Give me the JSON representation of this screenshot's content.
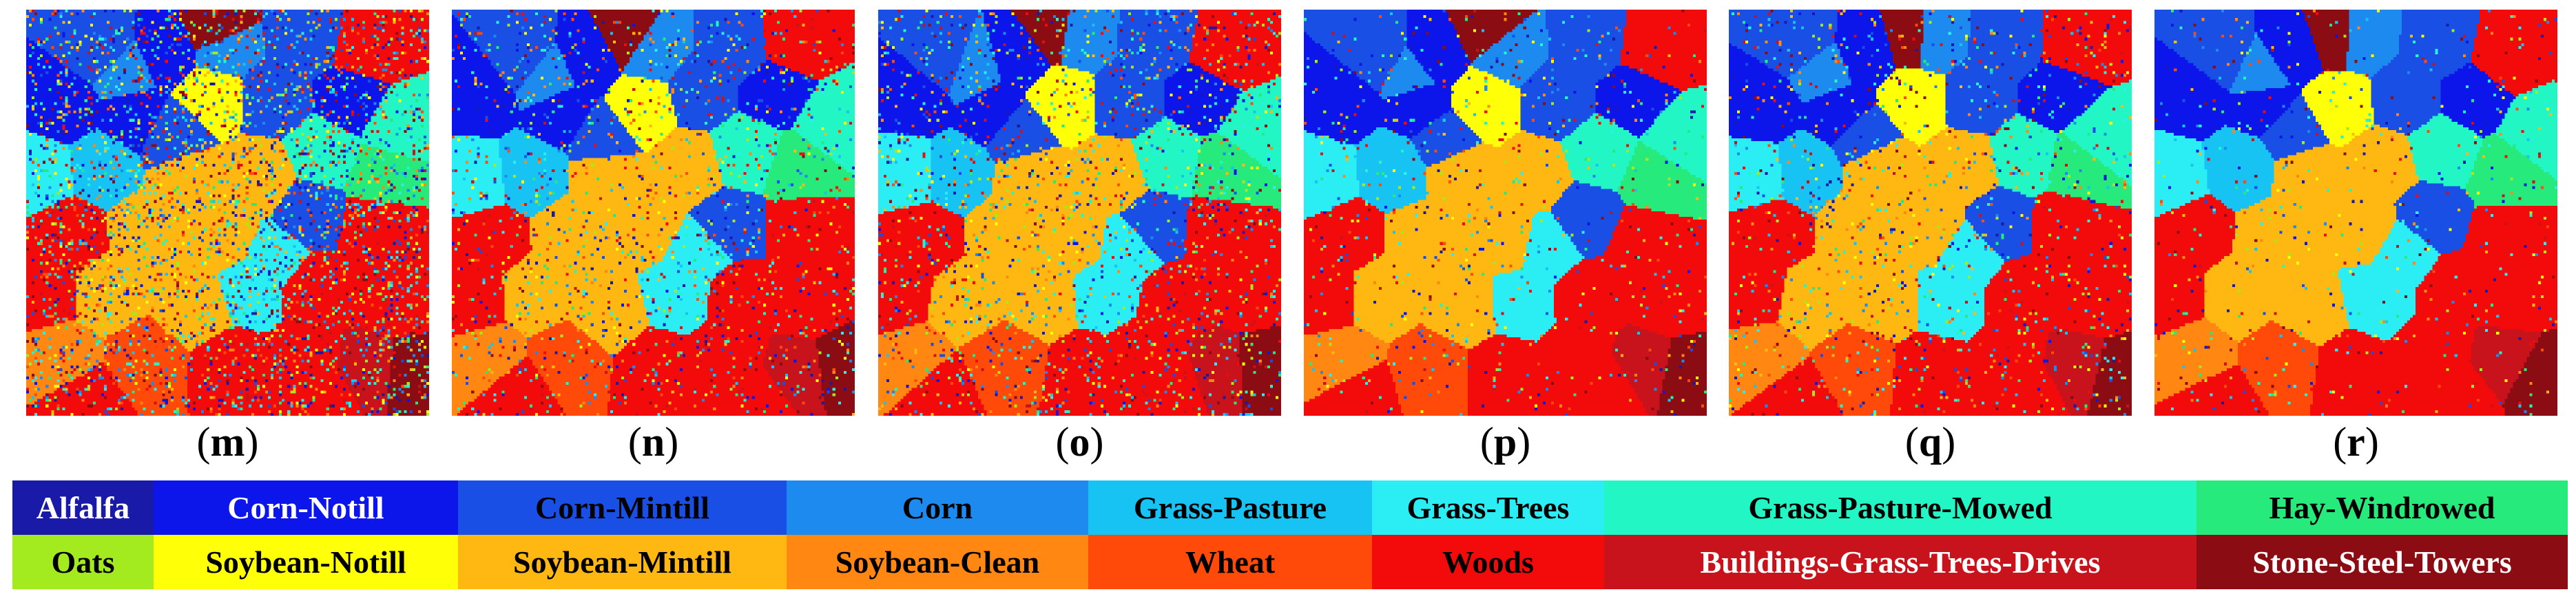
{
  "panels": [
    {
      "label": "m",
      "seed": 13,
      "noise": 0.36
    },
    {
      "label": "n",
      "seed": 29,
      "noise": 0.16
    },
    {
      "label": "o",
      "seed": 47,
      "noise": 0.2
    },
    {
      "label": "p",
      "seed": 61,
      "noise": 0.08
    },
    {
      "label": "q",
      "seed": 83,
      "noise": 0.13
    },
    {
      "label": "r",
      "seed": 97,
      "noise": 0.06
    }
  ],
  "label_format": {
    "open": "(",
    "close": ")"
  },
  "legend": {
    "rows": [
      [
        {
          "name": "Alfalfa",
          "color": "#1a1aa8",
          "text_color": "#ffffff"
        },
        {
          "name": "Corn-Notill",
          "color": "#0d16ea",
          "text_color": "#ffffff"
        },
        {
          "name": "Corn-Mintill",
          "color": "#1a4fe5",
          "text_color": "#000000"
        },
        {
          "name": "Corn",
          "color": "#1d8af0",
          "text_color": "#000000"
        },
        {
          "name": "Grass-Pasture",
          "color": "#16c3f2",
          "text_color": "#000000"
        },
        {
          "name": "Grass-Trees",
          "color": "#2beef4",
          "text_color": "#000000"
        },
        {
          "name": "Grass-Pasture-Mowed",
          "color": "#22f6c4",
          "text_color": "#000000"
        },
        {
          "name": "Hay-Windrowed",
          "color": "#26ea7c",
          "text_color": "#000000"
        }
      ],
      [
        {
          "name": "Oats",
          "color": "#a3ea1f",
          "text_color": "#000000"
        },
        {
          "name": "Soybean-Notill",
          "color": "#ffff08",
          "text_color": "#000000"
        },
        {
          "name": "Soybean-Mintill",
          "color": "#ffb812",
          "text_color": "#000000"
        },
        {
          "name": "Soybean-Clean",
          "color": "#ff8712",
          "text_color": "#000000"
        },
        {
          "name": "Wheat",
          "color": "#ff4a0a",
          "text_color": "#000000"
        },
        {
          "name": "Woods",
          "color": "#f30b0b",
          "text_color": "#000000"
        },
        {
          "name": "Buildings-Grass-Trees-Drives",
          "color": "#c8121c",
          "text_color": "#ffffff"
        },
        {
          "name": "Stone-Steel-Towers",
          "color": "#8b0c12",
          "text_color": "#ffffff"
        }
      ]
    ]
  }
}
